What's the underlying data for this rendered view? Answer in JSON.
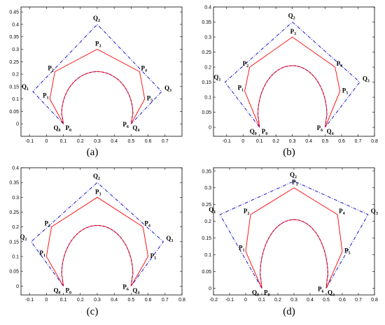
{
  "panel_labels": [
    "(a)",
    "(b)",
    "(c)",
    "(d)"
  ],
  "point_labels": {
    "Q": [
      "Q",
      "0",
      "Q",
      "1",
      "Q",
      "2",
      "Q",
      "3",
      "Q",
      "4"
    ],
    "P": [
      "P",
      "0",
      "P",
      "1",
      "P",
      "2",
      "P",
      "3",
      "P",
      "4",
      "P",
      "5",
      "P",
      "6"
    ]
  },
  "colors": {
    "control_polygon_P": "#ff0000",
    "control_polygon_Q": "#0000cc",
    "curve_P": "#ff0000",
    "curve_Q": "#0000cc"
  },
  "chart_data": [
    {
      "panel": "(a)",
      "type": "line",
      "xlim": [
        -0.15,
        0.8
      ],
      "ylim": [
        -0.05,
        0.47
      ],
      "xticks": [
        -0.1,
        0,
        0.1,
        0.2,
        0.3,
        0.4,
        0.5,
        0.6,
        0.7
      ],
      "yticks": [
        0,
        0.05,
        0.1,
        0.15,
        0.2,
        0.25,
        0.3,
        0.35,
        0.4,
        0.45
      ],
      "xtick_labels": [
        "-0.1",
        "0",
        "0.1",
        "0.2",
        "0.3",
        "0.4",
        "0.5",
        "0.6",
        "0.7"
      ],
      "ytick_labels": [
        "0",
        "0.05",
        "0.1",
        "0.15",
        "0.2",
        "0.25",
        "0.3",
        "0.35",
        "0.4",
        "0.45"
      ],
      "P": [
        [
          0.1,
          0
        ],
        [
          0.02,
          0.1
        ],
        [
          0.05,
          0.21
        ],
        [
          0.3,
          0.3
        ],
        [
          0.55,
          0.21
        ],
        [
          0.58,
          0.1
        ],
        [
          0.5,
          0
        ]
      ],
      "Q": [
        [
          0.1,
          0
        ],
        [
          -0.08,
          0.13
        ],
        [
          0.3,
          0.4
        ],
        [
          0.68,
          0.13
        ],
        [
          0.5,
          0
        ]
      ],
      "curve": {
        "center": [
          0.3,
          0.04
        ],
        "rx": 0.21,
        "ry": 0.17,
        "start_deg": 190,
        "end_deg": 350
      }
    },
    {
      "panel": "(b)",
      "type": "line",
      "xlim": [
        -0.18,
        0.8
      ],
      "ylim": [
        -0.03,
        0.4
      ],
      "xticks": [
        -0.1,
        0,
        0.1,
        0.2,
        0.3,
        0.4,
        0.5,
        0.6,
        0.7,
        0.8
      ],
      "yticks": [
        0,
        0.05,
        0.1,
        0.15,
        0.2,
        0.25,
        0.3,
        0.35,
        0.4
      ],
      "xtick_labels": [
        "-0.1",
        "0",
        "0.1",
        "0.2",
        "0.3",
        "0.4",
        "0.5",
        "0.6",
        "0.7",
        "0.8"
      ],
      "ytick_labels": [
        "0",
        "0.05",
        "0.1",
        "0.15",
        "0.2",
        "0.25",
        "0.3",
        "0.35",
        "0.4"
      ],
      "P": [
        [
          0.1,
          0
        ],
        [
          0.01,
          0.12
        ],
        [
          0.04,
          0.2
        ],
        [
          0.3,
          0.3
        ],
        [
          0.56,
          0.2
        ],
        [
          0.59,
          0.12
        ],
        [
          0.5,
          0
        ]
      ],
      "Q": [
        [
          0.1,
          0
        ],
        [
          -0.11,
          0.15
        ],
        [
          0.3,
          0.35
        ],
        [
          0.71,
          0.15
        ],
        [
          0.5,
          0
        ]
      ],
      "curve": {
        "center": [
          0.3,
          0.04
        ],
        "rx": 0.21,
        "ry": 0.165,
        "start_deg": 190,
        "end_deg": 350
      }
    },
    {
      "panel": "(c)",
      "type": "line",
      "xlim": [
        -0.15,
        0.8
      ],
      "ylim": [
        -0.03,
        0.4
      ],
      "xticks": [
        -0.1,
        0,
        0.1,
        0.2,
        0.3,
        0.4,
        0.5,
        0.6,
        0.7,
        0.8
      ],
      "yticks": [
        0,
        0.05,
        0.1,
        0.15,
        0.2,
        0.25,
        0.3,
        0.35,
        0.4
      ],
      "xtick_labels": [
        "-0.1",
        "0",
        "0.1",
        "0.2",
        "0.3",
        "0.4",
        "0.5",
        "0.6",
        "0.7",
        "0.8"
      ],
      "ytick_labels": [
        "0",
        "0.05",
        "0.1",
        "0.15",
        "0.2",
        "0.25",
        "0.3",
        "0.35",
        "0.4"
      ],
      "P": [
        [
          0.1,
          0
        ],
        [
          0.0,
          0.1
        ],
        [
          0.03,
          0.2
        ],
        [
          0.3,
          0.3
        ],
        [
          0.57,
          0.2
        ],
        [
          0.6,
          0.1
        ],
        [
          0.5,
          0
        ]
      ],
      "Q": [
        [
          0.1,
          0
        ],
        [
          -0.09,
          0.15
        ],
        [
          0.3,
          0.35
        ],
        [
          0.69,
          0.15
        ],
        [
          0.5,
          0
        ]
      ],
      "curve": {
        "center": [
          0.3,
          0.04
        ],
        "rx": 0.21,
        "ry": 0.165,
        "start_deg": 190,
        "end_deg": 350
      }
    },
    {
      "panel": "(d)",
      "type": "line",
      "xlim": [
        -0.2,
        0.8
      ],
      "ylim": [
        -0.02,
        0.36
      ],
      "xticks": [
        -0.2,
        -0.1,
        0,
        0.1,
        0.2,
        0.3,
        0.4,
        0.5,
        0.6,
        0.7,
        0.8
      ],
      "yticks": [
        0,
        0.05,
        0.1,
        0.15,
        0.2,
        0.25,
        0.3,
        0.35
      ],
      "xtick_labels": [
        "-0.2",
        "-0.1",
        "0",
        "0.1",
        "0.2",
        "0.3",
        "0.4",
        "0.5",
        "0.6",
        "0.7",
        "0.8"
      ],
      "ytick_labels": [
        "0",
        "0.05",
        "0.1",
        "0.15",
        "0.2",
        "0.25",
        "0.3",
        "0.35"
      ],
      "P": [
        [
          0.1,
          0
        ],
        [
          0.0,
          0.11
        ],
        [
          0.03,
          0.22
        ],
        [
          0.3,
          0.3
        ],
        [
          0.57,
          0.22
        ],
        [
          0.6,
          0.11
        ],
        [
          0.5,
          0
        ]
      ],
      "Q": [
        [
          0.1,
          0
        ],
        [
          -0.16,
          0.22
        ],
        [
          0.3,
          0.32
        ],
        [
          0.76,
          0.22
        ],
        [
          0.5,
          0
        ]
      ],
      "curve": {
        "center": [
          0.3,
          0.04
        ],
        "rx": 0.21,
        "ry": 0.165,
        "start_deg": 190,
        "end_deg": 350
      }
    }
  ]
}
